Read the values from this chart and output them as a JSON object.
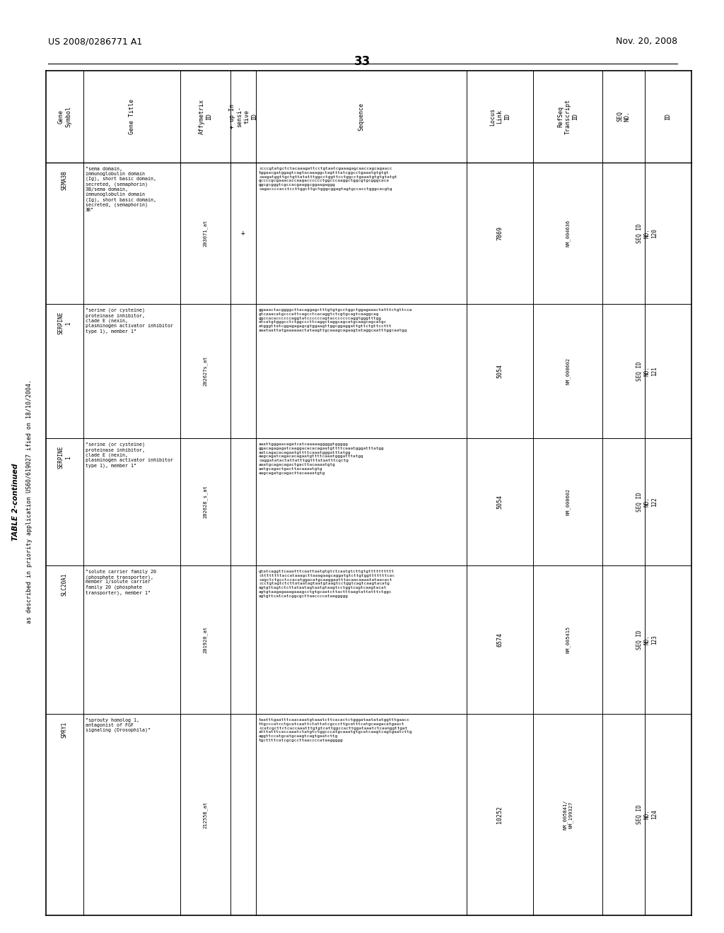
{
  "page_number": "33",
  "patent_number": "US 2008/0286771 A1",
  "date": "Nov. 20, 2008",
  "table_title": "TABLE 2-continued",
  "subtitle": "as described in priority application US60/619027 ified on 18/10/2004.",
  "col_headers": [
    "Gene\nSymbol",
    "Gene Title",
    "Affymetrix\nID",
    "+ up In\nsensi-\ntive\nID",
    "Sequence",
    "Locus\nLink\nID",
    "RefSeq\nTranscript\nID",
    "SEQ\nNO.",
    "ID"
  ],
  "row_symbols": [
    "SEMA3B",
    "SERPINE\n1",
    "SERPINE\n1",
    "SLC20A1",
    "SPRY1"
  ],
  "row_titles": [
    "\"sema domain,\nimmunoglobulin domain\n(Ig), short basic domain,\nsecreted, (semaphorin)\n3B/sema domain,\nimmunoglobulin domain\n(Ig), short basic domain,\nsecreted, (semaphorin)\n3B\"",
    "\"serine (or cysteine)\nproteinase inhibitor,\nclade E (nexin,\nplasminogen activator inhibitor\ntype 1), member 1\"",
    "\"serine (or cysteine)\nproteinase inhibitor,\nclade E (nexin,\nplasminogen activator inhibitor\ntype 1), member 1\"",
    "\"solute carrier family 20\n(phosphate transporter),\nmember 1/solute carrier\nfamily 20 (phosphate\ntransporter), member 1\"",
    "\"sprouty homolog 1,\nantagonist of FGF\nsignaling (Drosophila)\""
  ],
  "row_affymetrix": [
    "203071_at",
    "202627s_at",
    "202628_s_at",
    "201920_at",
    "212558_at"
  ],
  "row_up": [
    "+",
    "",
    "",
    "",
    ""
  ],
  "row_sequences": [
    "ccccgtatgctctacaaagattcctgtaatcgaaagagcaaccagcagaacc\ntggaacgatggagtcagtacaaaggctagtttatcggcctgaaatgtgtgt\ncaagatggttgctgttatatttggcctggttcctggcctgaaatgtgtgtatgt\ngccccgcgaaacaccaagacccccctggcccaaggctggcgtgcgggcaca\nggcgcgggtcgccacgaaggcggaagaggg\ncagaccccacctccttggcttgctgggcggagtagtgccacctgggcacgtg",
    "ggaaactacggggcttacaggagctttgtgtgcctggctggagaaactatttctgttcca\ngtcaaacatgcccattcagcctcacaggtctcgtgcagtcaaggcag\nggccacaccccccaggtatccccccagtacccccccaggtgggtttgg\natcatgtgggcctctggcccttcaggctaggcagcatgcaagcagcatgc\natgggttatcggagagagcgtggaagttggcggaggattgttctgttccttt\naaataattatgaaaaaactataagttgcaaagcagaagtataggcaatttggcaatgg",
    "aaattgggaacagatcatcaaaaagggggtggggg\nggacagagagatcaaggacacacagaatgttttcaaatgggatttatgg\naatcagacacagaatgttttcaaatgggatttatgg\naagcagatcagacacagaatgttttcaaatgggatttatgg\ncaggatatactattatttggtttataatttcgctg\naaatgcagacagactgacttacaaaatgtg\naatgcagactgacttacaaaatgtg\naagcagatgcagacttacaaaatgtg",
    "gtatcaggttcaaatttcaattaatgtgtctcaatgtcttgtgtttttttttt\ncttttttttaccataaagcttaaagaagcaggatgtcttgtggtttttttcac\ncagctctgcctccacatggacatgcaaggaatttacaacaaaatataacact\nccctgtagtctcttataatagtaatgtaagtcctggtcagtcaagtacatg\nagtgttagtctcttataatagtaatgtaagtcctggtcagtcaagtacat\nagtgtaagagaaagaaagcctgtgcaatcttactttaagtattatttctggc\nagtgttcatcatcggcgcttaaccccataaggggg",
    "taatttgaatttcaacaaatgtaaatcttcacactctgggataatatatggtttgaacc\nttgcccatcctgcatcaattctattatcgcccttgcatttcatgcaagacatgaact\nccatcgcttctcaccaaatttgtgtcattggccacttggataaatctcaanggttgat\natttatttcaccaaatctatgtctggcccatgcaaatgtgcatcaagtcagtgaatcttg\naggttccatgcatgcaagtcagtgaatcttg\ntgcttttcatcgcgccttaaccccataaggggg"
  ],
  "row_locus": [
    "7869",
    "5054",
    "5054",
    "6574",
    "10252"
  ],
  "row_refseq": [
    "NM_004636",
    "NM_000602",
    "NM_000602",
    "NM_005415",
    "NM_005841/\nNM_199327"
  ],
  "row_seqid_main": [
    "SEQ ID",
    "SEQ ID",
    "SEQ ID",
    "SEQ ID",
    "SEQ ID"
  ],
  "row_seqid_no": [
    "NO:",
    "NO:",
    "NO:",
    "NO:",
    "NO:"
  ],
  "row_seqid_num": [
    "120",
    "121",
    "122",
    "123",
    "124"
  ]
}
